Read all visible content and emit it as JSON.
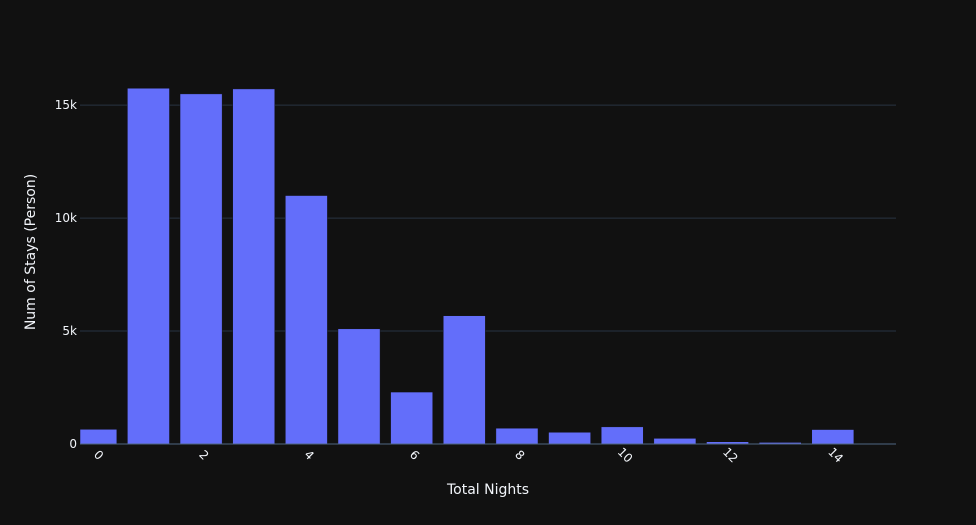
{
  "chart_data": {
    "type": "bar",
    "title": "",
    "xlabel": "Total Nights",
    "ylabel": "Num of Stays (Person)",
    "x": [
      0,
      1,
      2,
      3,
      4,
      5,
      6,
      7,
      8,
      9,
      10,
      11,
      12,
      13,
      14
    ],
    "values": [
      650,
      15750,
      15500,
      15720,
      11000,
      5100,
      2300,
      5680,
      700,
      520,
      760,
      250,
      100,
      70,
      640
    ],
    "xlim": [
      -0.3,
      15.2
    ],
    "ylim": [
      0,
      17000
    ],
    "xticks": [
      0,
      2,
      4,
      6,
      8,
      10,
      12,
      14
    ],
    "xtick_labels": [
      "0",
      "2",
      "4",
      "6",
      "8",
      "10",
      "12",
      "14"
    ],
    "yticks": [
      0,
      5000,
      10000,
      15000
    ],
    "ytick_labels": [
      "0",
      "5k",
      "10k",
      "15k"
    ],
    "grid": true,
    "colors": {
      "bar": "#636efa",
      "background": "#111111",
      "grid": "#283442",
      "text": "#f2f5fa"
    }
  }
}
